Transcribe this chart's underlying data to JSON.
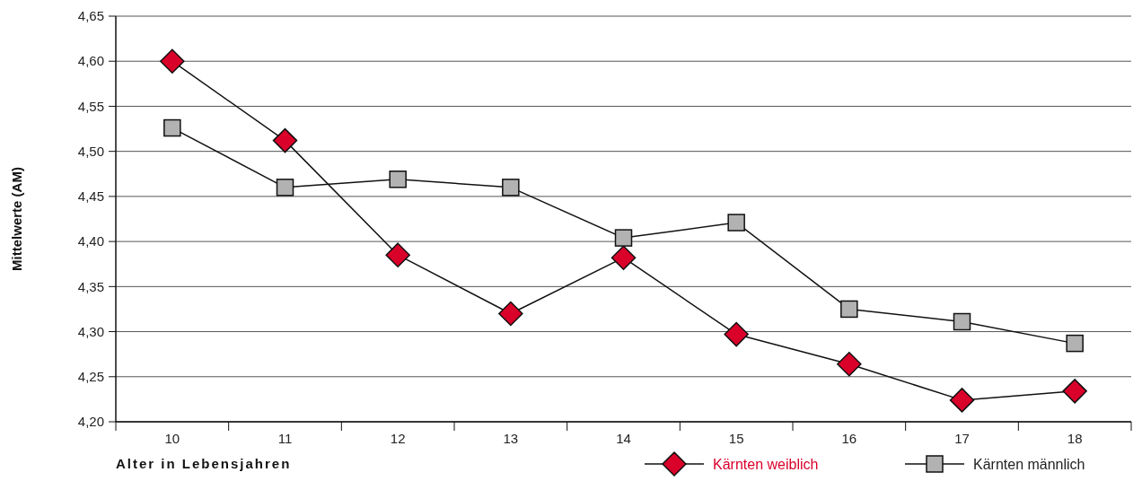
{
  "chart_data": {
    "type": "line",
    "xlabel": "Alter in Lebensjahren",
    "ylabel": "Mittelwerte (AM)",
    "categories": [
      "10",
      "11",
      "12",
      "13",
      "14",
      "15",
      "16",
      "17",
      "18"
    ],
    "series": [
      {
        "name": "Kärnten weiblich",
        "color": "#d9002a",
        "marker": "diamond",
        "values": [
          4.6,
          4.512,
          4.385,
          4.32,
          4.382,
          4.297,
          4.264,
          4.224,
          4.234
        ]
      },
      {
        "name": "Kärnten männlich",
        "color": "#b2b2b2",
        "marker": "square",
        "values": [
          4.526,
          4.46,
          4.469,
          4.46,
          4.404,
          4.421,
          4.325,
          4.311,
          4.287
        ]
      }
    ],
    "ylim": [
      4.2,
      4.65
    ],
    "yticks": [
      {
        "value": 4.2,
        "label": "4,20"
      },
      {
        "value": 4.25,
        "label": "4,25"
      },
      {
        "value": 4.3,
        "label": "4,30"
      },
      {
        "value": 4.35,
        "label": "4,35"
      },
      {
        "value": 4.4,
        "label": "4,40"
      },
      {
        "value": 4.45,
        "label": "4,45"
      },
      {
        "value": 4.5,
        "label": "4,50"
      },
      {
        "value": 4.55,
        "label": "4,55"
      },
      {
        "value": 4.6,
        "label": "4,60"
      },
      {
        "value": 4.65,
        "label": "4,65"
      }
    ],
    "grid": "y",
    "legend": "bottom right"
  }
}
